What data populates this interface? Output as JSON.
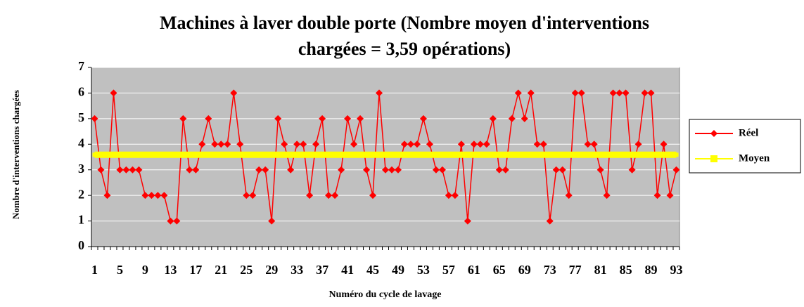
{
  "chart_data": {
    "type": "line",
    "title": "Machines à laver double porte (Nombre moyen d'interventions chargées = 3,59 opérations)",
    "x_label": "Numéro du cycle de lavage",
    "y_label": "Nombre d'interventions chargées",
    "categories": [
      1,
      null,
      null,
      null,
      5,
      null,
      null,
      null,
      9,
      null,
      null,
      null,
      13,
      null,
      null,
      null,
      17,
      null,
      null,
      null,
      21,
      null,
      null,
      null,
      25,
      null,
      null,
      null,
      29,
      null,
      null,
      null,
      33,
      null,
      null,
      null,
      37,
      null,
      null,
      null,
      41,
      null,
      null,
      null,
      45,
      null,
      null,
      null,
      49,
      null,
      null,
      null,
      53,
      null,
      null,
      null,
      57,
      null,
      null,
      null,
      61,
      null,
      null,
      null,
      65,
      null,
      null,
      null,
      69,
      null,
      null,
      null,
      73,
      null,
      null,
      null,
      77,
      null,
      null,
      null,
      81,
      null,
      null,
      null,
      85,
      null,
      null,
      null,
      89,
      null,
      null,
      null,
      93
    ],
    "series": [
      {
        "name": "Réel",
        "color": "#ff0000",
        "values": [
          5,
          3,
          2,
          6,
          3,
          3,
          3,
          3,
          2,
          2,
          2,
          2,
          1,
          1,
          5,
          3,
          3,
          4,
          5,
          4,
          4,
          4,
          6,
          4,
          2,
          2,
          3,
          3,
          1,
          5,
          4,
          3,
          4,
          4,
          2,
          4,
          5,
          2,
          2,
          3,
          5,
          4,
          5,
          3,
          2,
          6,
          3,
          3,
          3,
          4,
          4,
          4,
          5,
          4,
          3,
          3,
          2,
          2,
          4,
          1,
          4,
          4,
          4,
          5,
          3,
          3,
          5,
          6,
          5,
          6,
          4,
          4,
          1,
          3,
          3,
          2,
          6,
          6,
          4,
          4,
          3,
          2,
          6,
          6,
          6,
          3,
          4,
          6,
          6,
          2,
          4,
          2,
          3
        ]
      },
      {
        "name": "Moyen",
        "color": "#ffff00",
        "values": [
          3.59,
          3.59,
          3.59,
          3.59,
          3.59,
          3.59,
          3.59,
          3.59,
          3.59,
          3.59,
          3.59,
          3.59,
          3.59,
          3.59,
          3.59,
          3.59,
          3.59,
          3.59,
          3.59,
          3.59,
          3.59,
          3.59,
          3.59,
          3.59,
          3.59,
          3.59,
          3.59,
          3.59,
          3.59,
          3.59,
          3.59,
          3.59,
          3.59,
          3.59,
          3.59,
          3.59,
          3.59,
          3.59,
          3.59,
          3.59,
          3.59,
          3.59,
          3.59,
          3.59,
          3.59,
          3.59,
          3.59,
          3.59,
          3.59,
          3.59,
          3.59,
          3.59,
          3.59,
          3.59,
          3.59,
          3.59,
          3.59,
          3.59,
          3.59,
          3.59,
          3.59,
          3.59,
          3.59,
          3.59,
          3.59,
          3.59,
          3.59,
          3.59,
          3.59,
          3.59,
          3.59,
          3.59,
          3.59,
          3.59,
          3.59,
          3.59,
          3.59,
          3.59,
          3.59,
          3.59,
          3.59,
          3.59,
          3.59,
          3.59,
          3.59,
          3.59,
          3.59,
          3.59,
          3.59,
          3.59,
          3.59,
          3.59,
          3.59
        ]
      }
    ],
    "ylim": [
      0,
      7
    ],
    "yticks": [
      0,
      1,
      2,
      3,
      4,
      5,
      6,
      7
    ],
    "grid": true,
    "legend": "right"
  }
}
